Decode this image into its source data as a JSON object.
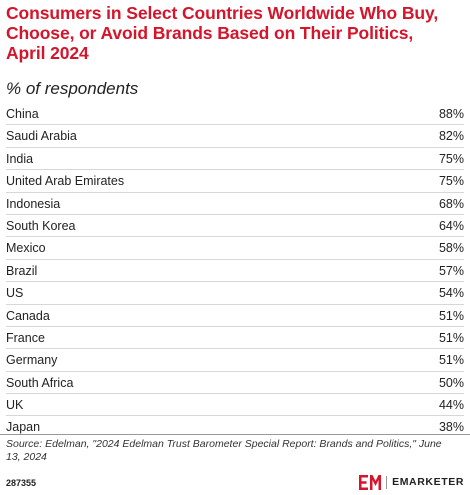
{
  "chart_data": {
    "type": "table",
    "title": "Consumers in Select Countries Worldwide Who Buy, Choose, or Avoid Brands Based on Their Politics, April 2024",
    "subtitle": "% of respondents",
    "rows": [
      {
        "country": "China",
        "value": "88%"
      },
      {
        "country": "Saudi Arabia",
        "value": "82%"
      },
      {
        "country": "India",
        "value": "75%"
      },
      {
        "country": "United Arab Emirates",
        "value": "75%"
      },
      {
        "country": "Indonesia",
        "value": "68%"
      },
      {
        "country": "South Korea",
        "value": "64%"
      },
      {
        "country": "Mexico",
        "value": "58%"
      },
      {
        "country": "Brazil",
        "value": "57%"
      },
      {
        "country": "US",
        "value": "54%"
      },
      {
        "country": "Canada",
        "value": "51%"
      },
      {
        "country": "France",
        "value": "51%"
      },
      {
        "country": "Germany",
        "value": "51%"
      },
      {
        "country": "South Africa",
        "value": "50%"
      },
      {
        "country": "UK",
        "value": "44%"
      },
      {
        "country": "Japan",
        "value": "38%"
      }
    ]
  },
  "footer": {
    "source": "Source: Edelman, \"2024 Edelman Trust Barometer Special Report: Brands and Politics,\" June 13, 2024",
    "chart_id": "287355",
    "brand_name": "EMARKETER",
    "brand_icon": "em-logo-icon",
    "brand_color": "#d4152b"
  }
}
